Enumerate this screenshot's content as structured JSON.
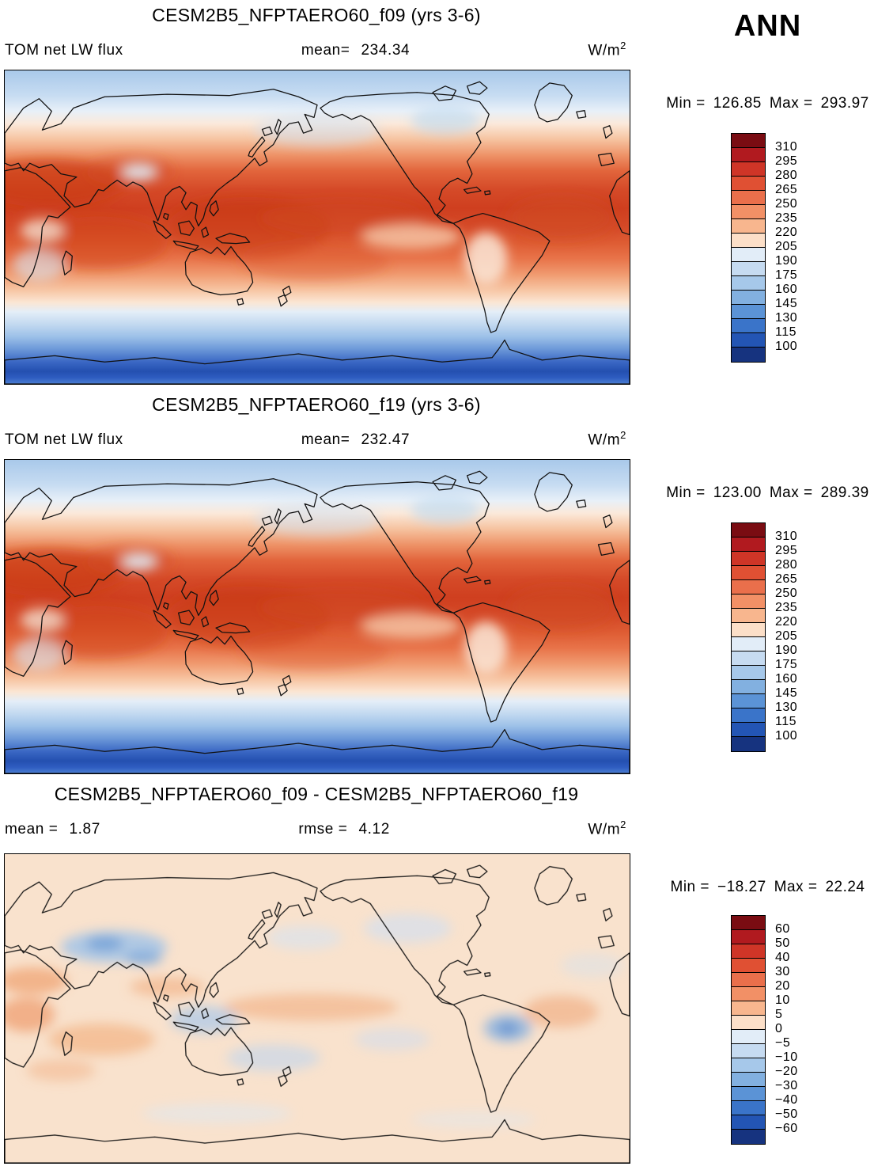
{
  "figure": {
    "season": "ANN"
  },
  "panels": [
    {
      "id": "f09",
      "title": "CESM2B5_NFPTAERO60_f09 (yrs 3-6)",
      "var_label": "TOM net LW flux",
      "mean_label": "mean=",
      "mean_value": "234.34",
      "units_base": "W/m",
      "units_exp": "2",
      "min_label": "Min =",
      "min_value": "126.85",
      "max_label": "Max =",
      "max_value": "293.97",
      "colorbar": {
        "labels": [
          "310",
          "295",
          "280",
          "265",
          "250",
          "235",
          "220",
          "205",
          "190",
          "175",
          "160",
          "145",
          "130",
          "115",
          "100"
        ],
        "colors": [
          "#7a0c12",
          "#b11a1f",
          "#cf3527",
          "#e05033",
          "#ea6f4b",
          "#f29066",
          "#f8b68e",
          "#fcdfc8",
          "#e2edf8",
          "#c6dbf1",
          "#a6c8ea",
          "#82b0e0",
          "#5b93d6",
          "#3a74c9",
          "#2355b4",
          "#16337f"
        ]
      }
    },
    {
      "id": "f19",
      "title": "CESM2B5_NFPTAERO60_f19 (yrs 3-6)",
      "var_label": "TOM net LW flux",
      "mean_label": "mean=",
      "mean_value": "232.47",
      "units_base": "W/m",
      "units_exp": "2",
      "min_label": "Min =",
      "min_value": "123.00",
      "max_label": "Max =",
      "max_value": "289.39",
      "colorbar": {
        "labels": [
          "310",
          "295",
          "280",
          "265",
          "250",
          "235",
          "220",
          "205",
          "190",
          "175",
          "160",
          "145",
          "130",
          "115",
          "100"
        ],
        "colors": [
          "#7a0c12",
          "#b11a1f",
          "#cf3527",
          "#e05033",
          "#ea6f4b",
          "#f29066",
          "#f8b68e",
          "#fcdfc8",
          "#e2edf8",
          "#c6dbf1",
          "#a6c8ea",
          "#82b0e0",
          "#5b93d6",
          "#3a74c9",
          "#2355b4",
          "#16337f"
        ]
      }
    },
    {
      "id": "diff",
      "title": "CESM2B5_NFPTAERO60_f09 - CESM2B5_NFPTAERO60_f19",
      "mean_label": "mean =",
      "mean_value": "1.87",
      "rmse_label": "rmse =",
      "rmse_value": "4.12",
      "units_base": "W/m",
      "units_exp": "2",
      "min_label": "Min =",
      "min_value": "−18.27",
      "max_label": "Max =",
      "max_value": "22.24",
      "colorbar": {
        "labels": [
          "60",
          "50",
          "40",
          "30",
          "20",
          "10",
          "5",
          "0",
          "−5",
          "−10",
          "−20",
          "−30",
          "−40",
          "−50",
          "−60"
        ],
        "colors": [
          "#7a0c12",
          "#b11a1f",
          "#cf3527",
          "#e05033",
          "#ea6f4b",
          "#f29066",
          "#f8b68e",
          "#fcdfc8",
          "#e2edf8",
          "#c6dbf1",
          "#a6c8ea",
          "#82b0e0",
          "#5b93d6",
          "#3a74c9",
          "#2355b4",
          "#16337f"
        ]
      }
    }
  ],
  "chart_data": [
    {
      "type": "heatmap",
      "title": "CESM2B5_NFPTAERO60_f09 (yrs 3-6)",
      "variable": "TOM net LW flux",
      "units": "W/m^2",
      "season": "ANN",
      "projection": "global latitude-longitude map",
      "mean": 234.34,
      "min": 126.85,
      "max": 293.97,
      "contour_levels": [
        100,
        115,
        130,
        145,
        160,
        175,
        190,
        205,
        220,
        235,
        250,
        265,
        280,
        295,
        310
      ],
      "palette": "blue-white-red diverging",
      "pattern": "high values (250-300, red) over subtropics and tropics, lowest values (100-160, dark blue) over Antarctica and polar regions"
    },
    {
      "type": "heatmap",
      "title": "CESM2B5_NFPTAERO60_f19 (yrs 3-6)",
      "variable": "TOM net LW flux",
      "units": "W/m^2",
      "season": "ANN",
      "projection": "global latitude-longitude map",
      "mean": 232.47,
      "min": 123.0,
      "max": 289.39,
      "contour_levels": [
        100,
        115,
        130,
        145,
        160,
        175,
        190,
        205,
        220,
        235,
        250,
        265,
        280,
        295,
        310
      ],
      "palette": "blue-white-red diverging",
      "pattern": "same zonal structure as f09 panel: red maximum in tropics/subtropics, dark blue minimum at high southern latitudes"
    },
    {
      "type": "heatmap",
      "title": "CESM2B5_NFPTAERO60_f09 - CESM2B5_NFPTAERO60_f19",
      "variable": "TOM net LW flux difference",
      "units": "W/m^2",
      "season": "ANN",
      "projection": "global latitude-longitude map",
      "mean": 1.87,
      "rmse": 4.12,
      "min": -18.27,
      "max": 22.24,
      "contour_levels": [
        -60,
        -50,
        -40,
        -30,
        -20,
        -10,
        -5,
        0,
        5,
        10,
        20,
        30,
        40,
        50,
        60
      ],
      "palette": "blue-white-red diverging",
      "pattern": "mostly weak positive differences (pale orange, 0-10) with scattered negative (blue) patches over central Asia, Tibet, maritime continent and Amazon"
    }
  ]
}
